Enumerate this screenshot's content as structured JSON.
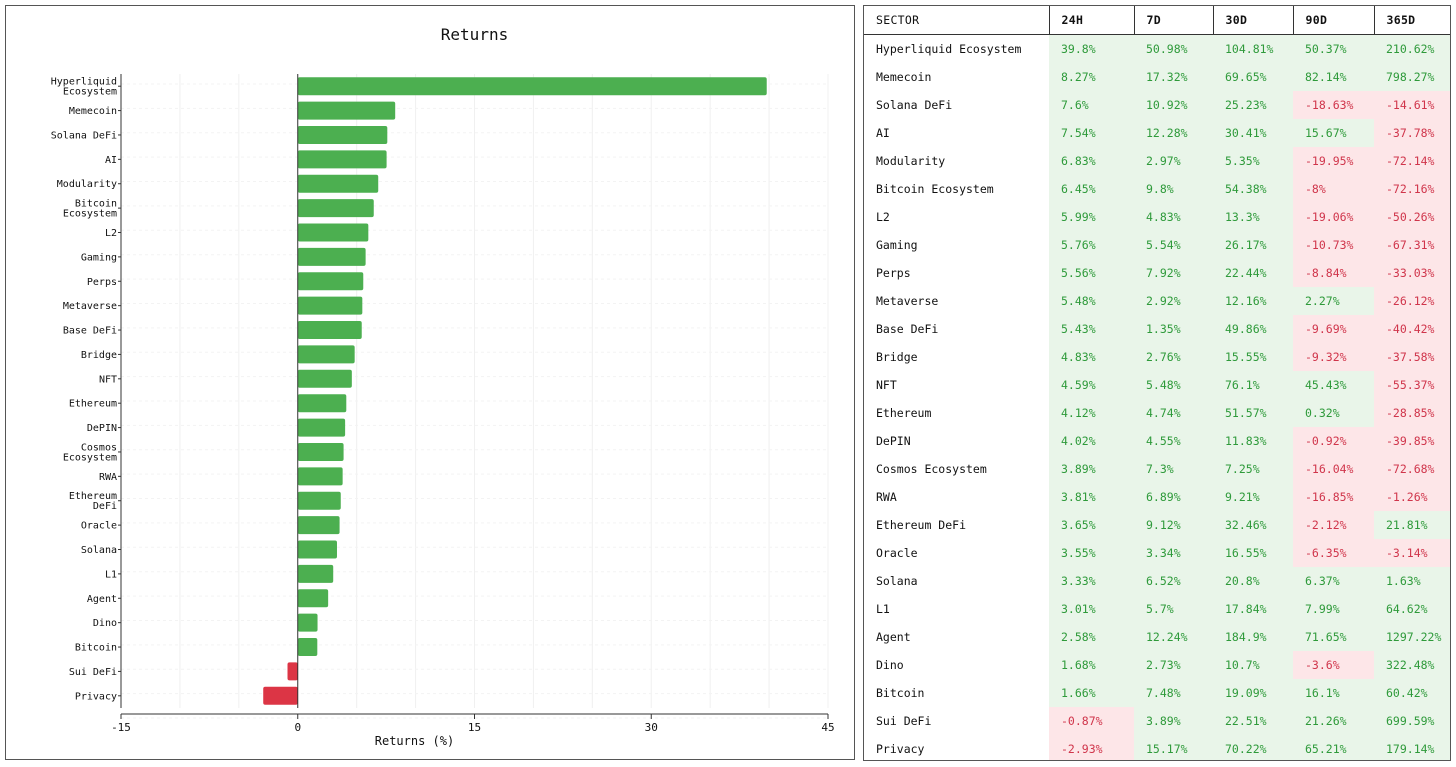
{
  "chart_data": {
    "type": "bar",
    "orientation": "horizontal",
    "title": "Returns",
    "xlabel": "Returns (%)",
    "xlim": [
      -15,
      45
    ],
    "xticks": [
      -15,
      0,
      15,
      30,
      45
    ],
    "grid": true,
    "categories": [
      [
        "Hyperliquid",
        "Ecosystem"
      ],
      [
        "Memecoin"
      ],
      [
        "Solana DeFi"
      ],
      [
        "AI"
      ],
      [
        "Modularity"
      ],
      [
        "Bitcoin",
        "Ecosystem"
      ],
      [
        "L2"
      ],
      [
        "Gaming"
      ],
      [
        "Perps"
      ],
      [
        "Metaverse"
      ],
      [
        "Base DeFi"
      ],
      [
        "Bridge"
      ],
      [
        "NFT"
      ],
      [
        "Ethereum"
      ],
      [
        "DePIN"
      ],
      [
        "Cosmos",
        "Ecosystem"
      ],
      [
        "RWA"
      ],
      [
        "Ethereum",
        "DeFi"
      ],
      [
        "Oracle"
      ],
      [
        "Solana"
      ],
      [
        "L1"
      ],
      [
        "Agent"
      ],
      [
        "Dino"
      ],
      [
        "Bitcoin"
      ],
      [
        "Sui DeFi"
      ],
      [
        "Privacy"
      ]
    ],
    "values": [
      39.8,
      8.27,
      7.6,
      7.54,
      6.83,
      6.45,
      5.99,
      5.76,
      5.56,
      5.48,
      5.43,
      4.83,
      4.59,
      4.12,
      4.02,
      3.89,
      3.81,
      3.65,
      3.55,
      3.33,
      3.01,
      2.58,
      1.68,
      1.66,
      -0.87,
      -2.93
    ],
    "colors": {
      "positive": "#4caf50",
      "negative": "#dc3545"
    }
  },
  "table": {
    "headers": [
      "SECTOR",
      "24H",
      "7D",
      "30D",
      "90D",
      "365D"
    ],
    "rows": [
      [
        "Hyperliquid Ecosystem",
        "39.8%",
        "50.98%",
        "104.81%",
        "50.37%",
        "210.62%"
      ],
      [
        "Memecoin",
        "8.27%",
        "17.32%",
        "69.65%",
        "82.14%",
        "798.27%"
      ],
      [
        "Solana DeFi",
        "7.6%",
        "10.92%",
        "25.23%",
        "-18.63%",
        "-14.61%"
      ],
      [
        "AI",
        "7.54%",
        "12.28%",
        "30.41%",
        "15.67%",
        "-37.78%"
      ],
      [
        "Modularity",
        "6.83%",
        "2.97%",
        "5.35%",
        "-19.95%",
        "-72.14%"
      ],
      [
        "Bitcoin Ecosystem",
        "6.45%",
        "9.8%",
        "54.38%",
        "-8%",
        "-72.16%"
      ],
      [
        "L2",
        "5.99%",
        "4.83%",
        "13.3%",
        "-19.06%",
        "-50.26%"
      ],
      [
        "Gaming",
        "5.76%",
        "5.54%",
        "26.17%",
        "-10.73%",
        "-67.31%"
      ],
      [
        "Perps",
        "5.56%",
        "7.92%",
        "22.44%",
        "-8.84%",
        "-33.03%"
      ],
      [
        "Metaverse",
        "5.48%",
        "2.92%",
        "12.16%",
        "2.27%",
        "-26.12%"
      ],
      [
        "Base DeFi",
        "5.43%",
        "1.35%",
        "49.86%",
        "-9.69%",
        "-40.42%"
      ],
      [
        "Bridge",
        "4.83%",
        "2.76%",
        "15.55%",
        "-9.32%",
        "-37.58%"
      ],
      [
        "NFT",
        "4.59%",
        "5.48%",
        "76.1%",
        "45.43%",
        "-55.37%"
      ],
      [
        "Ethereum",
        "4.12%",
        "4.74%",
        "51.57%",
        "0.32%",
        "-28.85%"
      ],
      [
        "DePIN",
        "4.02%",
        "4.55%",
        "11.83%",
        "-0.92%",
        "-39.85%"
      ],
      [
        "Cosmos Ecosystem",
        "3.89%",
        "7.3%",
        "7.25%",
        "-16.04%",
        "-72.68%"
      ],
      [
        "RWA",
        "3.81%",
        "6.89%",
        "9.21%",
        "-16.85%",
        "-1.26%"
      ],
      [
        "Ethereum DeFi",
        "3.65%",
        "9.12%",
        "32.46%",
        "-2.12%",
        "21.81%"
      ],
      [
        "Oracle",
        "3.55%",
        "3.34%",
        "16.55%",
        "-6.35%",
        "-3.14%"
      ],
      [
        "Solana",
        "3.33%",
        "6.52%",
        "20.8%",
        "6.37%",
        "1.63%"
      ],
      [
        "L1",
        "3.01%",
        "5.7%",
        "17.84%",
        "7.99%",
        "64.62%"
      ],
      [
        "Agent",
        "2.58%",
        "12.24%",
        "184.9%",
        "71.65%",
        "1297.22%"
      ],
      [
        "Dino",
        "1.68%",
        "2.73%",
        "10.7%",
        "-3.6%",
        "322.48%"
      ],
      [
        "Bitcoin",
        "1.66%",
        "7.48%",
        "19.09%",
        "16.1%",
        "60.42%"
      ],
      [
        "Sui DeFi",
        "-0.87%",
        "3.89%",
        "22.51%",
        "21.26%",
        "699.59%"
      ],
      [
        "Privacy",
        "-2.93%",
        "15.17%",
        "70.22%",
        "65.21%",
        "179.14%"
      ]
    ]
  }
}
